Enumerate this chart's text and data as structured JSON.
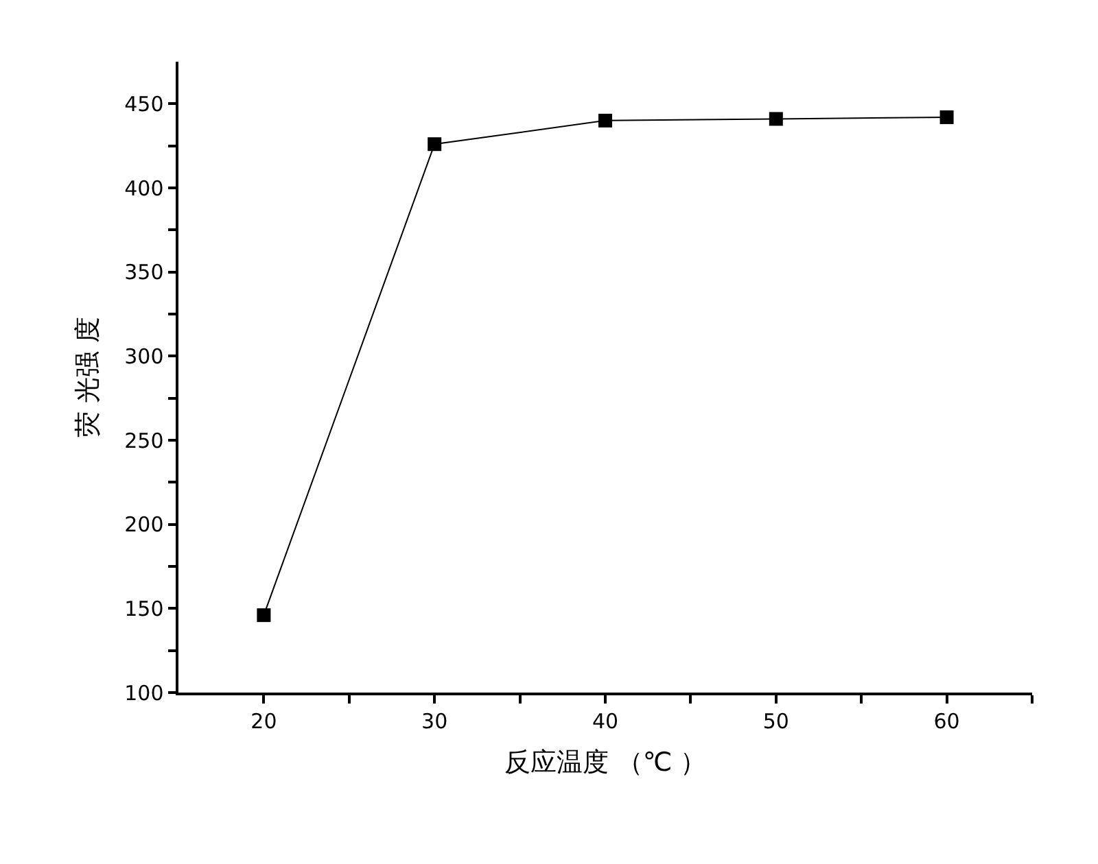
{
  "chart_data": {
    "type": "line",
    "xlabel": "反应温度 （℃ ）",
    "ylabel": "荧 光强 度",
    "x": [
      20,
      30,
      40,
      50,
      60
    ],
    "series": [
      {
        "color": "#000000",
        "values": [
          146,
          426,
          440,
          441,
          442
        ]
      }
    ],
    "marker": "square",
    "line_style": "solid",
    "xlim": [
      15,
      65
    ],
    "xticks": [
      20,
      {
        "value": 25,
        "label": null
      },
      30,
      {
        "value": 35,
        "label": null
      },
      40,
      {
        "value": 45,
        "label": null
      },
      50,
      {
        "value": 55,
        "label": null
      },
      60,
      {
        "value": 65,
        "label": null
      }
    ],
    "ylim": [
      100,
      475
    ],
    "yticks": [
      100,
      {
        "value": 125,
        "label": null
      },
      150,
      {
        "value": 175,
        "label": null
      },
      200,
      {
        "value": 225,
        "label": null
      },
      250,
      {
        "value": 275,
        "label": null
      },
      300,
      {
        "value": 325,
        "label": null
      },
      350,
      {
        "value": 375,
        "label": null
      },
      400,
      {
        "value": 425,
        "label": null
      },
      450
    ]
  }
}
